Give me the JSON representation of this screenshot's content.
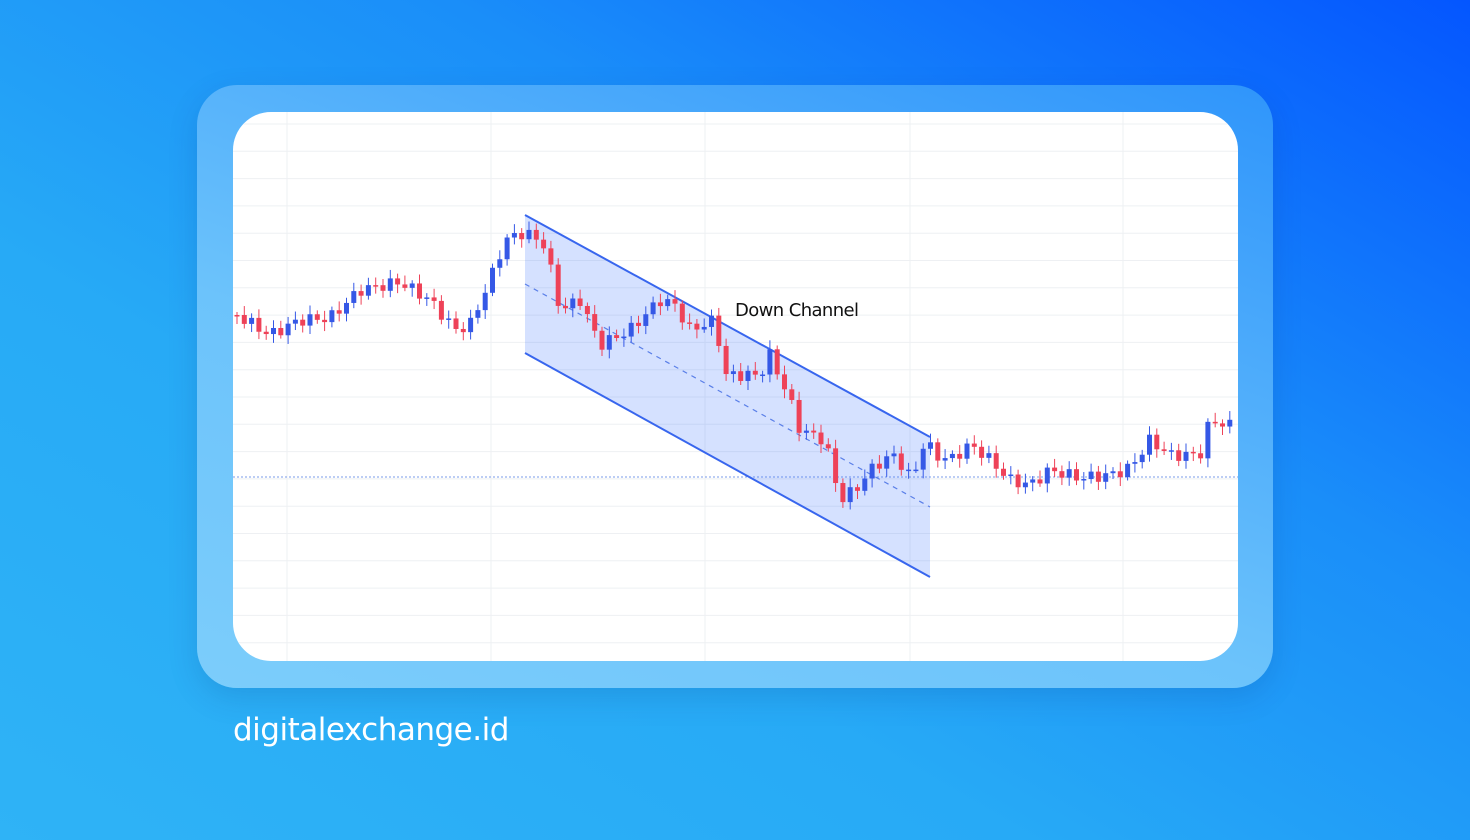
{
  "chart": {
    "annotation": "Down Channel"
  },
  "footer": {
    "brand": "digitalexchange.id"
  }
}
